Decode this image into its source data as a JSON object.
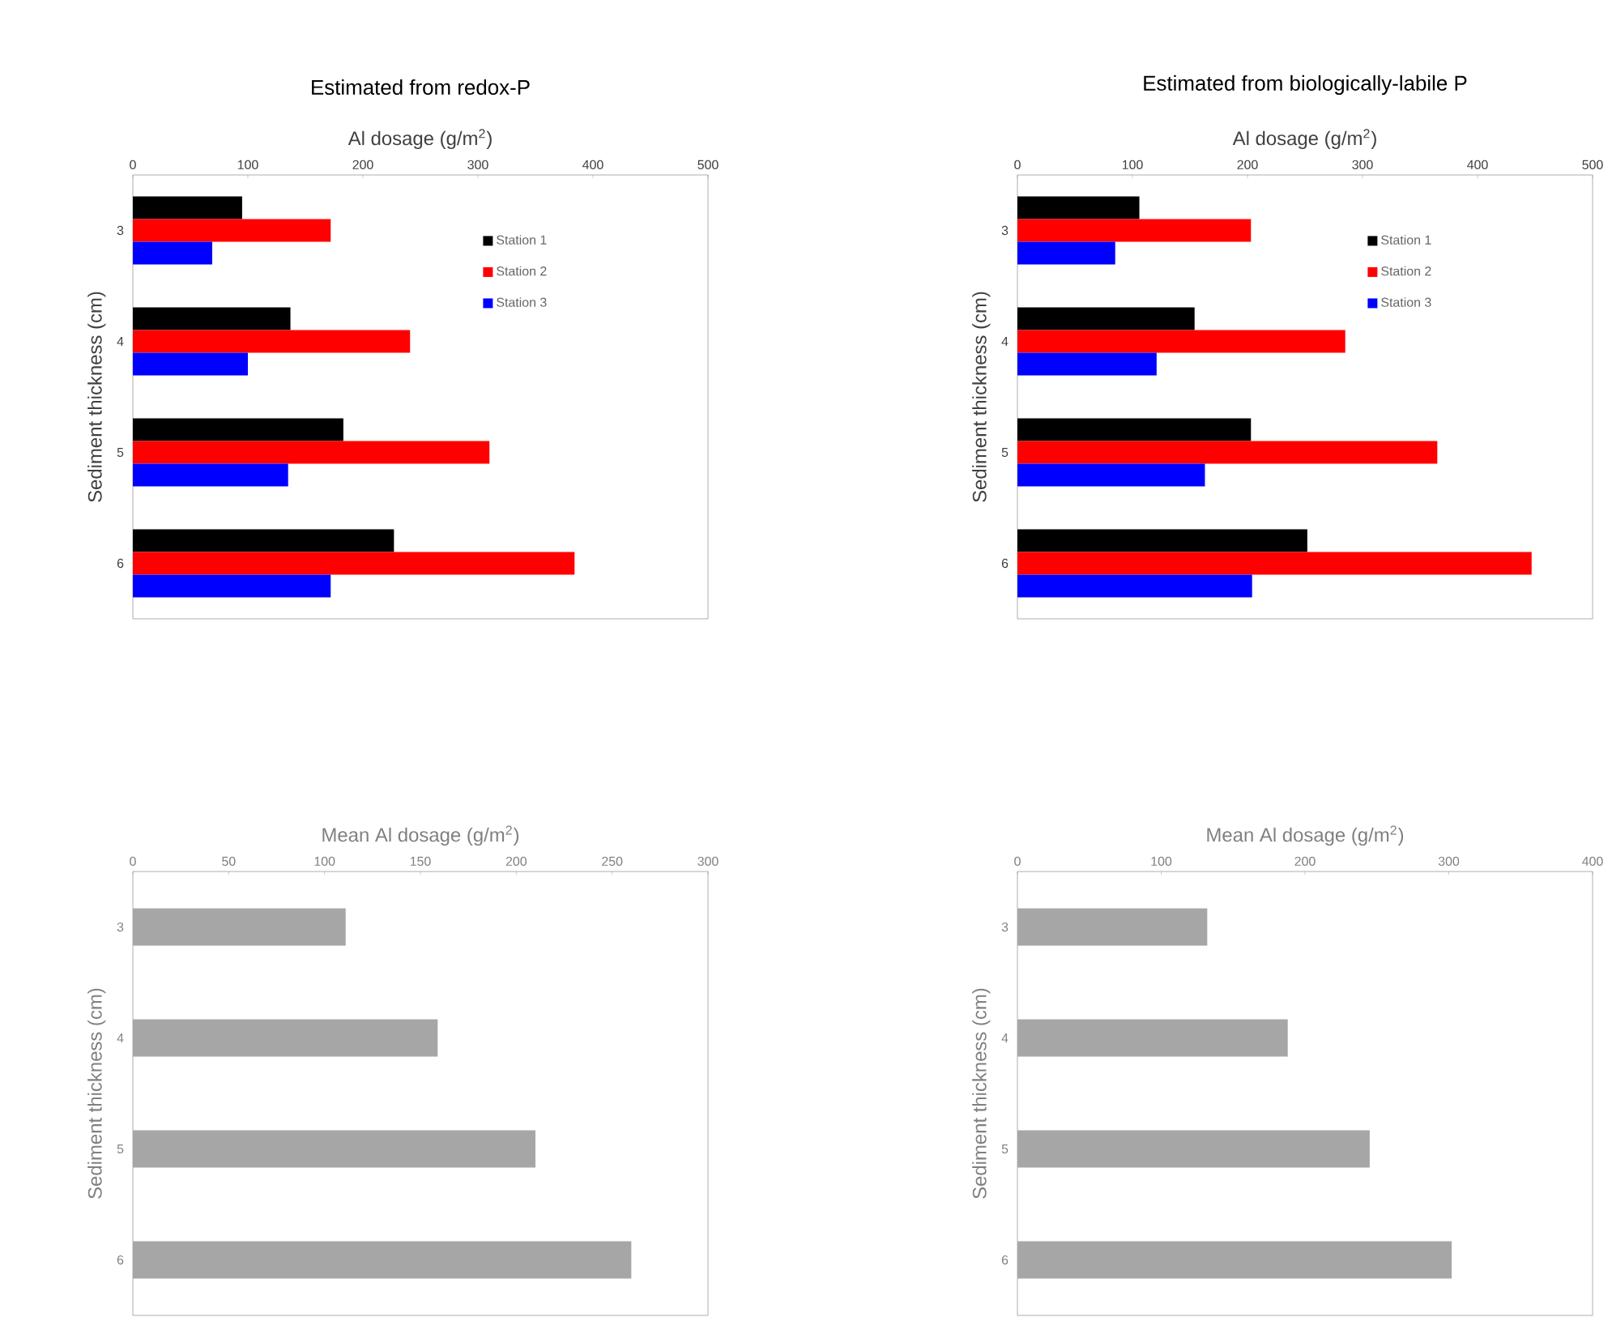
{
  "chart_data": [
    {
      "type": "bar",
      "orientation": "horizontal",
      "title": "Estimated from redox-P",
      "xlabel": "Al dosage (g/m$^{2}$)",
      "ylabel": "Sediment thickness (cm)",
      "categories": [
        "3",
        "4",
        "5",
        "6"
      ],
      "series": [
        {
          "name": "Station 1",
          "color": "#000000",
          "values": [
            95,
            137,
            183,
            227
          ]
        },
        {
          "name": "Station 2",
          "color": "#ff0000",
          "values": [
            172,
            241,
            310,
            384
          ]
        },
        {
          "name": "Station 3",
          "color": "#0000ff",
          "values": [
            69,
            100,
            135,
            172
          ]
        }
      ],
      "xlim": [
        0,
        500
      ],
      "xticks": [
        0,
        100,
        200,
        300,
        400,
        500
      ],
      "legend": "top right"
    },
    {
      "type": "bar",
      "orientation": "horizontal",
      "title": "Estimated from biologically-labile P",
      "xlabel": "Al dosage (g/m$^{2}$)",
      "ylabel": "Sediment thickness (cm)",
      "categories": [
        "3",
        "4",
        "5",
        "6"
      ],
      "series": [
        {
          "name": "Station 1",
          "color": "#000000",
          "values": [
            106,
            154,
            203,
            252
          ]
        },
        {
          "name": "Station 2",
          "color": "#ff0000",
          "values": [
            203,
            285,
            365,
            447
          ]
        },
        {
          "name": "Station 3",
          "color": "#0000ff",
          "values": [
            85,
            121,
            163,
            204
          ]
        }
      ],
      "xlim": [
        0,
        500
      ],
      "xticks": [
        0,
        100,
        200,
        300,
        400,
        500
      ],
      "legend": "top right"
    },
    {
      "type": "bar",
      "orientation": "horizontal",
      "xlabel": "Mean Al dosage (g/m$^{2}$)",
      "ylabel": "Sediment thickness (cm)",
      "categories": [
        "3",
        "4",
        "5",
        "6"
      ],
      "series": [
        {
          "color": "#a6a6a6",
          "values": [
            111,
            159,
            210,
            260
          ]
        }
      ],
      "xlim": [
        0,
        300
      ],
      "xticks": [
        0,
        50,
        100,
        150,
        200,
        250,
        300
      ]
    },
    {
      "type": "bar",
      "orientation": "horizontal",
      "xlabel": "Mean Al dosage (g/m$^{2}$)",
      "ylabel": "Sediment thickness (cm)",
      "categories": [
        "3",
        "4",
        "5",
        "6"
      ],
      "series": [
        {
          "color": "#a6a6a6",
          "values": [
            132,
            188,
            245,
            302
          ]
        }
      ],
      "xlim": [
        0,
        400
      ],
      "xticks": [
        0,
        100,
        200,
        300,
        400
      ]
    }
  ]
}
